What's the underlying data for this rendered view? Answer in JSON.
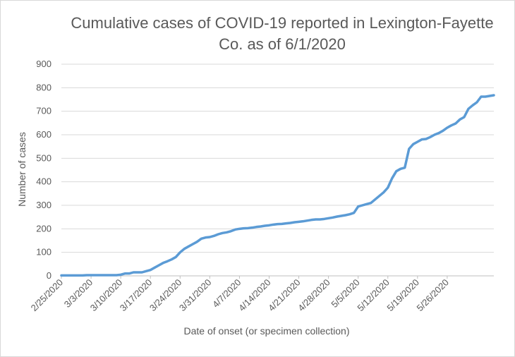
{
  "chart_data": {
    "type": "line",
    "title_line1": "Cumulative cases of COVID-19 reported in Lexington-Fayette",
    "title_line2": "Co.  as of 6/1/2020",
    "xlabel": "Date of onset (or specimen collection)",
    "ylabel": "Number of cases",
    "ylim": [
      0,
      900
    ],
    "yticks": [
      0,
      100,
      200,
      300,
      400,
      500,
      600,
      700,
      800,
      900
    ],
    "xtick_labels": [
      "2/25/2020",
      "3/3/2020",
      "3/10/2020",
      "3/17/2020",
      "3/24/2020",
      "3/31/2020",
      "4/7/2020",
      "4/14/2020",
      "4/21/2020",
      "4/28/2020",
      "5/5/2020",
      "5/12/2020",
      "5/19/2020",
      "5/26/2020"
    ],
    "grid": true,
    "color": "#5b9bd5",
    "series": [
      {
        "values": [
          2,
          2,
          2,
          2,
          2,
          2,
          3,
          3,
          3,
          3,
          3,
          3,
          3,
          3,
          5,
          10,
          10,
          15,
          15,
          15,
          20,
          25,
          35,
          45,
          55,
          62,
          70,
          80,
          100,
          115,
          125,
          135,
          145,
          158,
          163,
          165,
          170,
          177,
          182,
          185,
          190,
          197,
          200,
          202,
          203,
          205,
          208,
          210,
          213,
          215,
          218,
          220,
          221,
          223,
          225,
          228,
          230,
          232,
          235,
          238,
          240,
          240,
          242,
          245,
          248,
          252,
          255,
          258,
          262,
          268,
          295,
          300,
          305,
          310,
          325,
          340,
          355,
          375,
          415,
          445,
          455,
          460,
          540,
          560,
          570,
          580,
          582,
          590,
          600,
          607,
          617,
          630,
          640,
          648,
          665,
          675,
          710,
          725,
          738,
          762,
          762,
          765,
          768
        ]
      }
    ]
  }
}
